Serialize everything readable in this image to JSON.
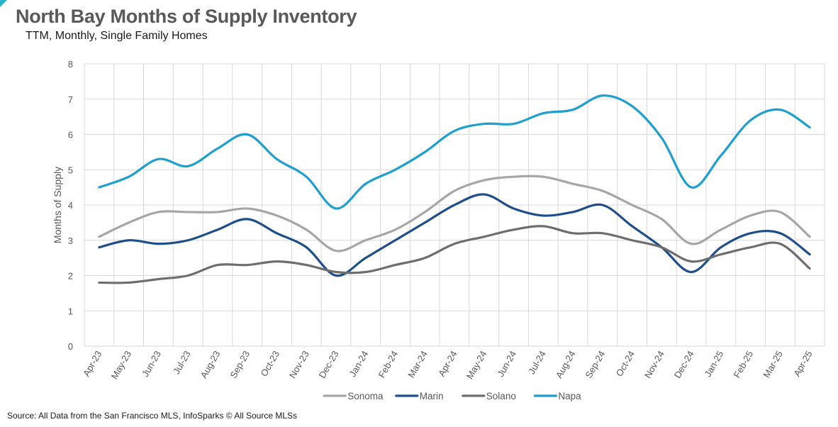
{
  "title": "North Bay Months of Supply Inventory",
  "subtitle": "TTM, Monthly, Single Family Homes",
  "source": "Source: All Data from the San Francisco MLS, InfoSparks © All Source MLSs",
  "chart_data": {
    "type": "line",
    "categories": [
      "Apr-23",
      "May-23",
      "Jun-23",
      "Jul-23",
      "Aug-23",
      "Sep-23",
      "Oct-23",
      "Nov-23",
      "Dec-23",
      "Jan-24",
      "Feb-24",
      "Mar-24",
      "Apr-24",
      "May-24",
      "Jun-24",
      "Jul-24",
      "Aug-24",
      "Sep-24",
      "Oct-24",
      "Nov-24",
      "Dec-24",
      "Jan-25",
      "Feb-25",
      "Mar-25",
      "Apr-25"
    ],
    "ylabel": "Months of Supply",
    "ylim": [
      0,
      8
    ],
    "yticks": [
      0,
      1,
      2,
      3,
      4,
      5,
      6,
      7,
      8
    ],
    "grid": true,
    "legend_position": "bottom",
    "series": [
      {
        "name": "Sonoma",
        "color": "#a6a6a6",
        "values": [
          3.1,
          3.5,
          3.8,
          3.8,
          3.8,
          3.9,
          3.7,
          3.3,
          2.7,
          3.0,
          3.3,
          3.8,
          4.4,
          4.7,
          4.8,
          4.8,
          4.6,
          4.4,
          4.0,
          3.6,
          2.9,
          3.3,
          3.7,
          3.8,
          3.1
        ]
      },
      {
        "name": "Marin",
        "color": "#1f4e8c",
        "values": [
          2.8,
          3.0,
          2.9,
          3.0,
          3.3,
          3.6,
          3.2,
          2.8,
          2.0,
          2.5,
          3.0,
          3.5,
          4.0,
          4.3,
          3.9,
          3.7,
          3.8,
          4.0,
          3.4,
          2.8,
          2.1,
          2.8,
          3.2,
          3.2,
          2.6
        ]
      },
      {
        "name": "Solano",
        "color": "#6e6e6e",
        "values": [
          1.8,
          1.8,
          1.9,
          2.0,
          2.3,
          2.3,
          2.4,
          2.3,
          2.1,
          2.1,
          2.3,
          2.5,
          2.9,
          3.1,
          3.3,
          3.4,
          3.2,
          3.2,
          3.0,
          2.8,
          2.4,
          2.6,
          2.8,
          2.9,
          2.2
        ]
      },
      {
        "name": "Napa",
        "color": "#1d9fcf",
        "values": [
          4.5,
          4.8,
          5.3,
          5.1,
          5.6,
          6.0,
          5.3,
          4.8,
          3.9,
          4.6,
          5.0,
          5.5,
          6.1,
          6.3,
          6.3,
          6.6,
          6.7,
          7.1,
          6.8,
          5.9,
          4.5,
          5.4,
          6.4,
          6.7,
          6.2
        ]
      }
    ]
  }
}
